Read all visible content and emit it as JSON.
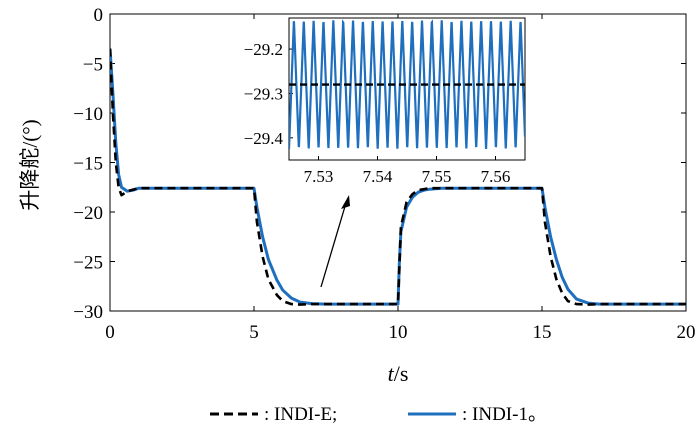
{
  "chart_data": [
    {
      "type": "line",
      "xlabel_var": "t",
      "xlabel_unit": "/s",
      "ylabel": "升降舵/(°)",
      "xlim": [
        0,
        20
      ],
      "ylim": [
        -30,
        0
      ],
      "xticks": [
        0,
        5,
        10,
        15,
        20
      ],
      "yticks": [
        0,
        -5,
        -10,
        -15,
        -20,
        -25,
        -30
      ],
      "grid": false,
      "legend": {
        "placement": "bottom"
      },
      "series": [
        {
          "name": "INDI-E",
          "style": "dashed",
          "color": "#000000",
          "x": [
            0,
            0.1,
            0.2,
            0.3,
            0.4,
            0.6,
            1.0,
            5.0,
            5.1,
            5.3,
            5.5,
            5.8,
            6.0,
            6.3,
            6.6,
            7.0,
            10.0,
            10.1,
            10.3,
            10.5,
            10.7,
            10.9,
            11.1,
            11.5,
            15.0,
            15.1,
            15.3,
            15.5,
            15.7,
            15.9,
            16.2,
            16.6,
            17.0,
            20.0
          ],
          "y": [
            -3.5,
            -10,
            -15,
            -17.5,
            -18.3,
            -17.9,
            -17.6,
            -17.6,
            -21,
            -24.5,
            -26.8,
            -28.4,
            -29.0,
            -29.3,
            -29.35,
            -29.3,
            -29.3,
            -21.5,
            -19,
            -18.2,
            -17.8,
            -17.7,
            -17.6,
            -17.6,
            -17.6,
            -21,
            -24.5,
            -26.8,
            -28.2,
            -29.0,
            -29.3,
            -29.35,
            -29.3,
            -29.3
          ]
        },
        {
          "name": "INDI-1",
          "style": "solid",
          "color": "#1f6fbf",
          "x": [
            0,
            0.1,
            0.2,
            0.3,
            0.4,
            0.6,
            0.8,
            1.0,
            5.0,
            5.1,
            5.3,
            5.5,
            5.8,
            6.0,
            6.3,
            6.6,
            7.0,
            7.5,
            10.0,
            10.05,
            10.1,
            10.3,
            10.5,
            10.7,
            10.9,
            11.1,
            11.5,
            15.0,
            15.1,
            15.3,
            15.5,
            15.7,
            15.9,
            16.2,
            16.6,
            17.0,
            20.0
          ],
          "y": [
            -3.5,
            -8,
            -13,
            -16.2,
            -17.5,
            -17.9,
            -17.8,
            -17.6,
            -17.6,
            -19.5,
            -22.5,
            -24.8,
            -26.9,
            -27.9,
            -28.7,
            -29.1,
            -29.25,
            -29.3,
            -29.3,
            -25,
            -22,
            -19.5,
            -18.5,
            -18.0,
            -17.8,
            -17.7,
            -17.6,
            -17.6,
            -19.5,
            -22.5,
            -24.8,
            -26.6,
            -27.8,
            -28.8,
            -29.2,
            -29.3,
            -29.3
          ]
        }
      ]
    },
    {
      "type": "line",
      "role": "inset",
      "xlim": [
        7.525,
        7.565
      ],
      "ylim": [
        -29.45,
        -29.13
      ],
      "xticks": [
        7.53,
        7.54,
        7.55,
        7.56
      ],
      "xtick_labels": [
        "7.53",
        "7.54",
        "7.55",
        "7.56"
      ],
      "yticks": [
        -29.2,
        -29.3,
        -29.4
      ],
      "ytick_labels": [
        "−29.2",
        "−29.3",
        "−29.4"
      ],
      "series": [
        {
          "name": "INDI-E",
          "style": "dashed",
          "color": "#000000",
          "constant": -29.28
        },
        {
          "name": "INDI-1",
          "style": "solid",
          "color": "#1f6fbf",
          "oscillation": {
            "center": -29.28,
            "amplitude": 0.145,
            "period": 0.00167
          }
        }
      ]
    }
  ],
  "legend": {
    "entries": [
      {
        "label": ": INDI-E;"
      },
      {
        "label": ": INDI-1。"
      }
    ]
  },
  "tick_labels_main": {
    "x": [
      "0",
      "5",
      "10",
      "15",
      "20"
    ],
    "y": [
      "0",
      "−5",
      "−10",
      "−15",
      "−20",
      "−25",
      "−30"
    ]
  }
}
